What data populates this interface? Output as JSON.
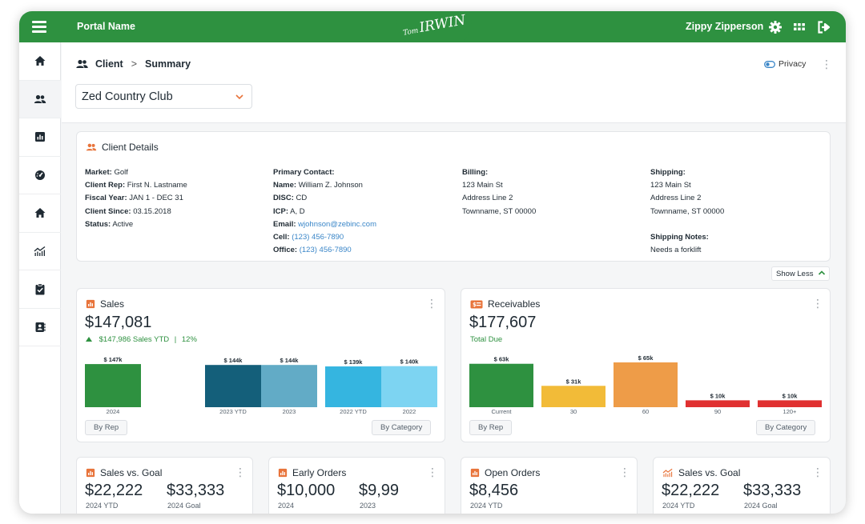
{
  "topbar": {
    "portal_name": "Portal Name",
    "logo_small": "Tom",
    "logo_main": "IRWIN",
    "user_name": "Zippy Zipperson",
    "icons": [
      "menu-icon",
      "settings-gear-icon",
      "apps-grid-icon",
      "logout-icon"
    ]
  },
  "sidebar": {
    "items": [
      {
        "name": "home-icon"
      },
      {
        "name": "clients-icon"
      },
      {
        "name": "reports-icon"
      },
      {
        "name": "dashboard-gauge-icon"
      },
      {
        "name": "home-alt-icon"
      },
      {
        "name": "analytics-icon"
      },
      {
        "name": "tasks-clipboard-icon"
      },
      {
        "name": "contacts-book-icon"
      }
    ]
  },
  "breadcrumb": {
    "section": "Client",
    "separator": ">",
    "page": "Summary"
  },
  "privacy_label": "Privacy",
  "client_select": {
    "value": "Zed Country Club"
  },
  "client_details": {
    "title": "Client Details",
    "market_label": "Market:",
    "market": "Golf",
    "rep_label": "Client Rep:",
    "rep": "First N. Lastname",
    "fiscal_label": "Fiscal Year:",
    "fiscal": "JAN 1 - DEC 31",
    "since_label": "Client Since:",
    "since": "03.15.2018",
    "status_label": "Status:",
    "status": "Active",
    "primary_contact_label": "Primary Contact:",
    "name_label": "Name:",
    "name": "William Z. Johnson",
    "disc_label": "DISC:",
    "disc": "CD",
    "icp_label": "ICP:",
    "icp": "A, D",
    "email_label": "Email:",
    "email": "wjohnson@zebinc.com",
    "cell_label": "Cell:",
    "cell": "(123) 456-7890",
    "office_label": "Office:",
    "office": "(123) 456-7890",
    "billing_label": "Billing:",
    "billing_line1": "123 Main St",
    "billing_line2": "Address Line 2",
    "billing_line3": "Townname, ST 00000",
    "shipping_label": "Shipping:",
    "shipping_line1": "123 Main St",
    "shipping_line2": "Address Line 2",
    "shipping_line3": "Townname, ST 00000",
    "shipping_notes_label": "Shipping Notes:",
    "shipping_notes": "Needs a forklift",
    "show_less": "Show Less"
  },
  "sales_card": {
    "title": "Sales",
    "total": "$147,081",
    "ytd_line": "$147,986 Sales YTD",
    "ytd_sep": "|",
    "ytd_pct": "12%",
    "by_rep": "By Rep",
    "by_category": "By Category"
  },
  "receivables_card": {
    "title": "Receivables",
    "total": "$177,607",
    "subtitle": "Total Due",
    "by_rep": "By Rep",
    "by_category": "By Category"
  },
  "kpis": [
    {
      "title": "Sales vs. Goal",
      "v1": "$22,222",
      "l1": "2024 YTD",
      "v2": "$33,333",
      "l2": "2024 Goal"
    },
    {
      "title": "Early Orders",
      "v1": "$10,000",
      "l1": "2024",
      "v2": "$9,99",
      "l2": "2023"
    },
    {
      "title": "Open Orders",
      "v1": "$8,456",
      "l1": "2024 YTD"
    },
    {
      "title": "Sales vs. Goal",
      "v1": "$22,222",
      "l1": "2024 YTD",
      "v2": "$33,333",
      "l2": "2024 Goal"
    }
  ],
  "colors": {
    "brand_green": "#2e9140",
    "accent_orange": "#e8743b",
    "link_blue": "#3a86c8"
  },
  "chart_data": [
    {
      "type": "bar",
      "title": "Sales",
      "categories": [
        "2024",
        "2023 YTD",
        "2023",
        "2022 YTD",
        "2022"
      ],
      "values": [
        147,
        144,
        144,
        139,
        140
      ],
      "labels": [
        "$ 147k",
        "$ 144k",
        "$ 144k",
        "$ 139k",
        "$ 140k"
      ],
      "colors": [
        "#2e9140",
        "#145f7a",
        "#62abc6",
        "#35b5e0",
        "#7dd4f2"
      ],
      "unit": "k",
      "ylim": [
        0,
        150
      ]
    },
    {
      "type": "bar",
      "title": "Receivables",
      "categories": [
        "Current",
        "30",
        "60",
        "90",
        "120+"
      ],
      "values": [
        63,
        31,
        65,
        10,
        10
      ],
      "labels": [
        "$ 63k",
        "$ 31k",
        "$ 65k",
        "$ 10k",
        "$ 10k"
      ],
      "colors": [
        "#2e9140",
        "#f2bb38",
        "#ee9c48",
        "#e03030",
        "#e03030"
      ],
      "unit": "k",
      "ylim": [
        0,
        65
      ]
    }
  ]
}
